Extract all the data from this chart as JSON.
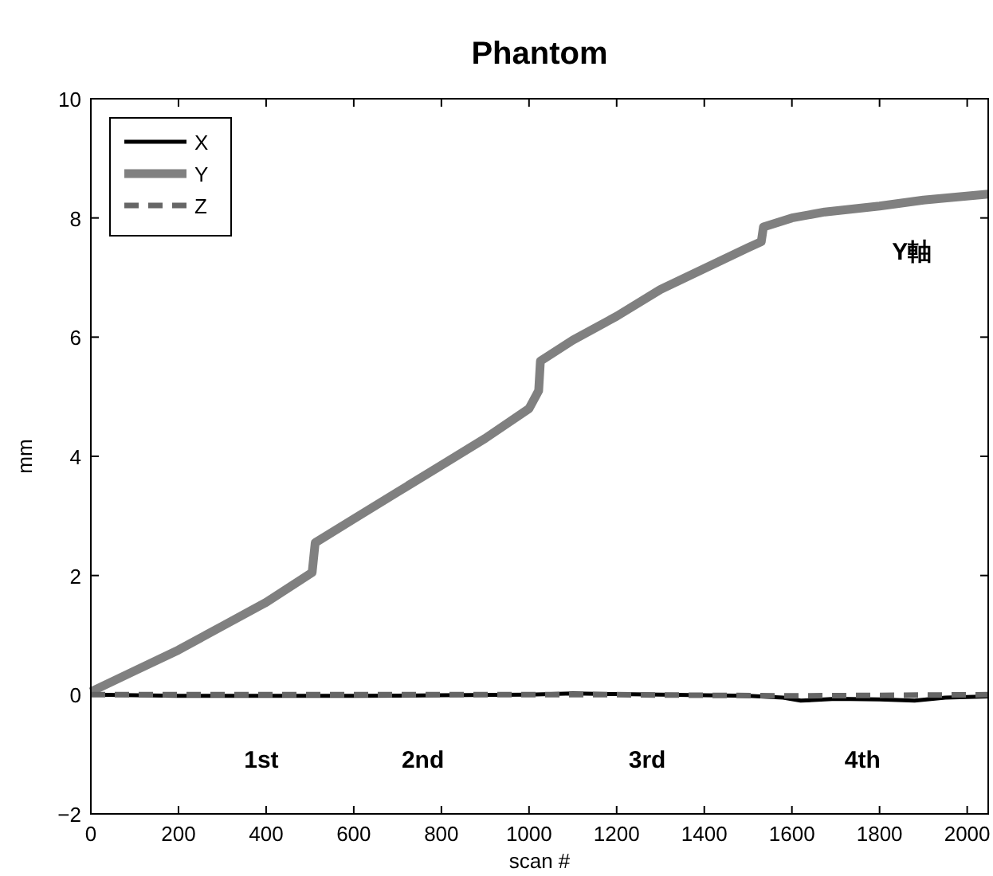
{
  "chart_data": {
    "type": "line",
    "title": "Phantom",
    "xlabel": "scan #",
    "ylabel": "mm",
    "xlim": [
      0,
      2048
    ],
    "ylim": [
      -2,
      10
    ],
    "xticks": [
      0,
      200,
      400,
      600,
      800,
      1000,
      1200,
      1400,
      1600,
      1800,
      2000
    ],
    "yticks": [
      {
        "value": -2,
        "label": "−2"
      },
      0,
      2,
      4,
      6,
      8,
      10
    ],
    "legend": "top left",
    "grid": false,
    "series": [
      {
        "name": "X",
        "color": "#000000",
        "line_style": "solid",
        "x": [
          0,
          200,
          400,
          600,
          800,
          1000,
          1100,
          1200,
          1300,
          1500,
          1580,
          1620,
          1700,
          1800,
          1880,
          1950,
          2048
        ],
        "values": [
          0,
          -0.02,
          -0.02,
          -0.02,
          -0.01,
          0,
          0.02,
          0.01,
          0,
          -0.02,
          -0.05,
          -0.1,
          -0.07,
          -0.08,
          -0.1,
          -0.05,
          -0.03
        ]
      },
      {
        "name": "Y",
        "color": "#808080",
        "line_style": "solid",
        "x": [
          0,
          100,
          200,
          300,
          400,
          505,
          512,
          600,
          700,
          800,
          900,
          1000,
          1022,
          1026,
          1100,
          1200,
          1300,
          1400,
          1500,
          1530,
          1535,
          1600,
          1675,
          1800,
          1900,
          2048
        ],
        "values": [
          0.05,
          0.4,
          0.75,
          1.15,
          1.55,
          2.05,
          2.55,
          2.95,
          3.4,
          3.85,
          4.3,
          4.8,
          5.1,
          5.6,
          5.95,
          6.35,
          6.8,
          7.15,
          7.5,
          7.6,
          7.85,
          8.0,
          8.1,
          8.2,
          8.3,
          8.4
        ]
      },
      {
        "name": "Z",
        "color": "#666666",
        "line_style": "dashed",
        "x": [
          0,
          400,
          800,
          1200,
          1600,
          2048
        ],
        "values": [
          0,
          0,
          0,
          0,
          -0.02,
          0
        ]
      }
    ],
    "annotations": [
      "Y軸",
      "1st",
      "2nd",
      "3rd",
      "4th"
    ]
  }
}
